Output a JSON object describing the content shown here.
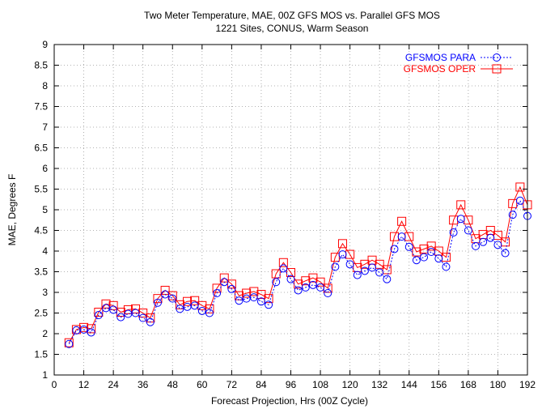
{
  "chart_data": {
    "type": "line",
    "title": "Two Meter Temperature, MAE, 00Z GFS MOS vs. Parallel GFS MOS",
    "subtitle": "1221 Sites, CONUS, Warm Season",
    "xlabel": "Forecast Projection, Hrs (00Z Cycle)",
    "ylabel": "MAE, Degrees F",
    "xlim": [
      0,
      192
    ],
    "ylim": [
      1,
      9
    ],
    "xticks": [
      0,
      12,
      24,
      36,
      48,
      60,
      72,
      84,
      96,
      108,
      120,
      132,
      144,
      156,
      168,
      180,
      192
    ],
    "yticks": [
      1,
      1.5,
      2,
      2.5,
      3,
      3.5,
      4,
      4.5,
      5,
      5.5,
      6,
      6.5,
      7,
      7.5,
      8,
      8.5,
      9
    ],
    "grid": true,
    "legend_position": "top-right",
    "x": [
      6,
      9,
      12,
      15,
      18,
      21,
      24,
      27,
      30,
      33,
      36,
      39,
      42,
      45,
      48,
      51,
      54,
      57,
      60,
      63,
      66,
      69,
      72,
      75,
      78,
      81,
      84,
      87,
      90,
      93,
      96,
      99,
      102,
      105,
      108,
      111,
      114,
      117,
      120,
      123,
      126,
      129,
      132,
      135,
      138,
      141,
      144,
      147,
      150,
      153,
      156,
      159,
      162,
      165,
      168,
      171,
      174,
      177,
      180,
      183,
      186,
      189,
      192
    ],
    "series": [
      {
        "name": "GFSMOS PARA",
        "color": "#0000ff",
        "line_style": "dotted",
        "marker": "circle",
        "values": [
          1.75,
          2.08,
          2.1,
          2.03,
          2.45,
          2.62,
          2.58,
          2.4,
          2.48,
          2.5,
          2.38,
          2.28,
          2.75,
          2.95,
          2.85,
          2.6,
          2.65,
          2.68,
          2.55,
          2.5,
          2.98,
          3.25,
          3.08,
          2.8,
          2.85,
          2.88,
          2.78,
          2.7,
          3.25,
          3.58,
          3.32,
          3.05,
          3.12,
          3.18,
          3.12,
          2.98,
          3.62,
          3.92,
          3.68,
          3.42,
          3.52,
          3.6,
          3.48,
          3.32,
          4.05,
          4.35,
          4.1,
          3.78,
          3.85,
          3.98,
          3.82,
          3.62,
          4.45,
          4.78,
          4.5,
          4.12,
          4.22,
          4.32,
          4.15,
          3.95,
          4.88,
          5.22,
          4.85
        ]
      },
      {
        "name": "GFSMOS OPER",
        "color": "#ff0000",
        "line_style": "solid",
        "marker": "square",
        "values": [
          1.78,
          2.1,
          2.15,
          2.12,
          2.52,
          2.72,
          2.68,
          2.52,
          2.58,
          2.6,
          2.5,
          2.38,
          2.85,
          3.05,
          2.92,
          2.7,
          2.78,
          2.8,
          2.68,
          2.6,
          3.1,
          3.35,
          3.2,
          2.92,
          2.98,
          3.02,
          2.95,
          2.85,
          3.45,
          3.72,
          3.48,
          3.2,
          3.28,
          3.35,
          3.25,
          3.1,
          3.85,
          4.18,
          3.92,
          3.6,
          3.68,
          3.78,
          3.68,
          3.55,
          4.35,
          4.72,
          4.35,
          3.98,
          4.05,
          4.12,
          4.0,
          3.85,
          4.75,
          5.12,
          4.75,
          4.3,
          4.4,
          4.5,
          4.38,
          4.22,
          5.15,
          5.55,
          5.12
        ]
      }
    ]
  }
}
